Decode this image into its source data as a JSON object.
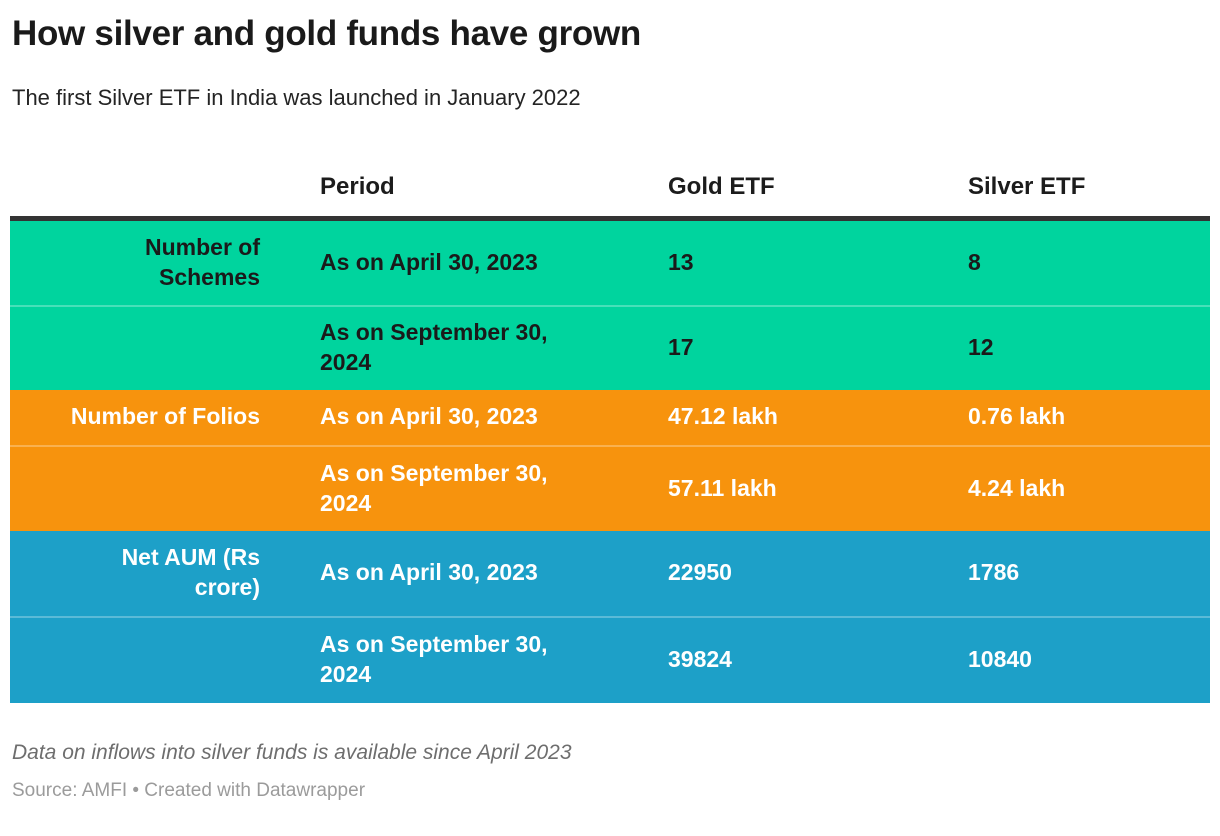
{
  "header": {
    "title": "How silver and gold funds have grown",
    "subtitle": "The first Silver ETF in India was launched in January 2022"
  },
  "chart_data": {
    "type": "table",
    "title": "How silver and gold funds have grown",
    "subtitle": "The first Silver ETF in India was launched in January 2022",
    "columns": [
      "",
      "Period",
      "Gold ETF",
      "Silver ETF"
    ],
    "groups": [
      {
        "label": "Number of Schemes",
        "color": "#00d49e",
        "rows": [
          [
            "As on April 30, 2023",
            "13",
            "8"
          ],
          [
            "As on September 30, 2024",
            "17",
            "12"
          ]
        ]
      },
      {
        "label": "Number of Folios",
        "color": "#f7930d",
        "rows": [
          [
            "As on April 30, 2023",
            "47.12 lakh",
            "0.76 lakh"
          ],
          [
            "As on September 30, 2024",
            "57.11 lakh",
            "4.24 lakh"
          ]
        ]
      },
      {
        "label": "Net AUM (Rs crore)",
        "color": "#1da0c8",
        "rows": [
          [
            "As on April 30, 2023",
            "22950",
            "1786"
          ],
          [
            "As on September 30, 2024",
            "39824",
            "10840"
          ]
        ]
      }
    ],
    "note": "Data on inflows into silver funds is available since April 2023",
    "source": "Source: AMFI • Created with Datawrapper",
    "layout": {
      "legend": "none",
      "grid": "off",
      "header_rule_color": "#333333"
    }
  }
}
